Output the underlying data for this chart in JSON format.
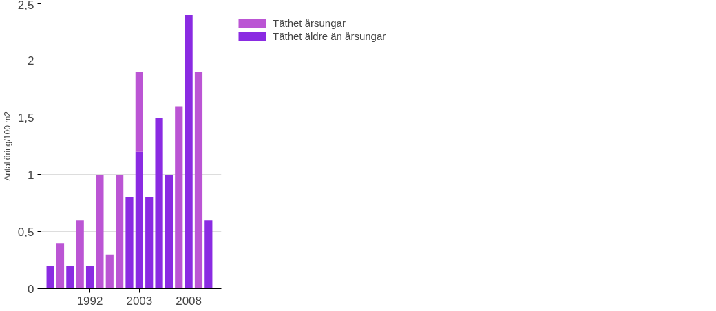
{
  "chart_data": {
    "type": "bar",
    "stacked": true,
    "ylabel": "Antal öring/100 m2",
    "categories": [
      null,
      null,
      null,
      null,
      "1992",
      null,
      null,
      null,
      null,
      "2003",
      null,
      null,
      null,
      null,
      "2008",
      null,
      null
    ],
    "series": [
      {
        "name": "Täthet äldre än årsungar",
        "color": "#8a2be2",
        "values": [
          0.2,
          null,
          0.2,
          null,
          0.2,
          null,
          null,
          null,
          0.8,
          1.2,
          0.8,
          1.5,
          1.0,
          null,
          2.4,
          null,
          0.6
        ]
      },
      {
        "name": "Täthet årsungar",
        "color": "#bb55d4",
        "values": [
          null,
          0.4,
          null,
          0.6,
          null,
          1.0,
          0.3,
          1.0,
          null,
          0.7,
          null,
          null,
          null,
          1.6,
          null,
          1.9,
          null
        ]
      }
    ],
    "ylim": [
      0,
      2.5
    ],
    "yticks": [
      0,
      {
        "value": 0.5,
        "label": "0,5"
      },
      1,
      {
        "value": 1.5,
        "label": "1,5"
      },
      2,
      {
        "value": 2.5,
        "label": "2,5"
      }
    ],
    "grid": "y",
    "legend": "top right"
  }
}
